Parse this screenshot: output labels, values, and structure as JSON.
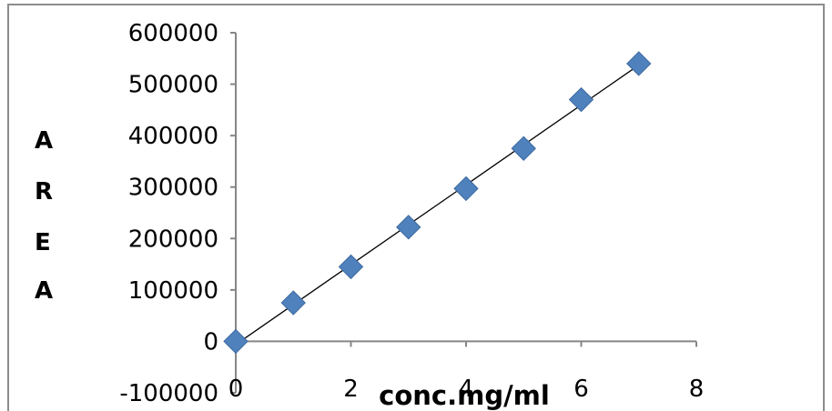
{
  "chart_data": {
    "type": "scatter",
    "title": "",
    "xlabel": "conc.mg/ml",
    "ylabel": "AREA",
    "ylabel_letters": [
      "A",
      "R",
      "E",
      "A"
    ],
    "xlim": [
      0,
      8
    ],
    "ylim": [
      -100000,
      600000
    ],
    "x_ticks": [
      0,
      2,
      4,
      6,
      8
    ],
    "y_ticks": [
      -100000,
      0,
      100000,
      200000,
      300000,
      400000,
      500000,
      600000
    ],
    "x_tick_labels": [
      "0",
      "2",
      "4",
      "6",
      "8"
    ],
    "y_tick_labels": [
      "-100000",
      "0",
      "100000",
      "200000",
      "300000",
      "400000",
      "500000",
      "600000"
    ],
    "grid": false,
    "legend": "none",
    "marker_color": "#4f81bd",
    "trendline": "linear",
    "series": [
      {
        "x": [
          0,
          1,
          2,
          3,
          4,
          5,
          6,
          7
        ],
        "y": [
          0,
          75000,
          145000,
          222000,
          297000,
          375000,
          470000,
          540000
        ]
      }
    ]
  }
}
